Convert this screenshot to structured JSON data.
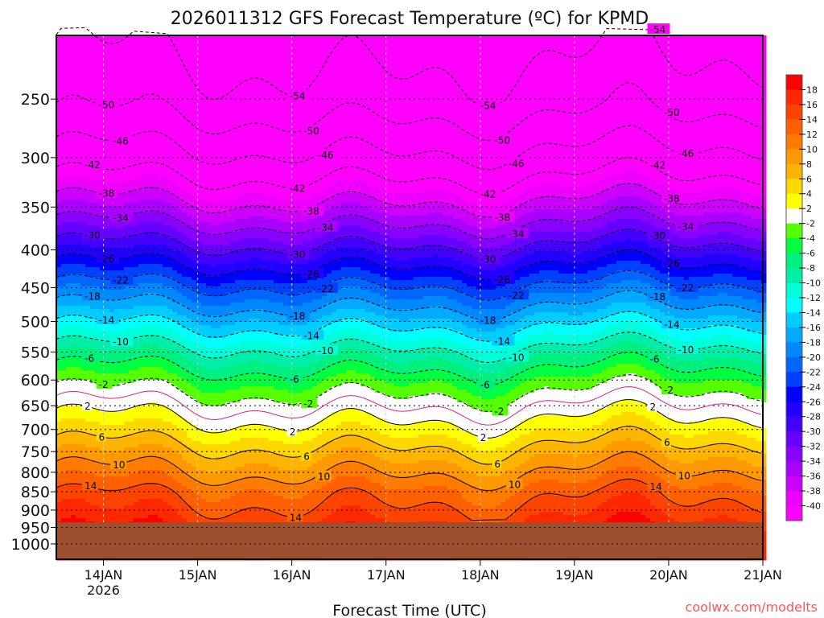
{
  "chart_data": {
    "type": "heatmap",
    "title": "2026011312 GFS Forecast Temperature (ºC) for KPMD",
    "xlabel": "Forecast Time (UTC)",
    "ylabel": "",
    "watermark": "coolwx.com/modelts",
    "x_ticks": [
      {
        "day": 14,
        "label": "14JAN",
        "sub": "2026"
      },
      {
        "day": 15,
        "label": "15JAN"
      },
      {
        "day": 16,
        "label": "16JAN"
      },
      {
        "day": 17,
        "label": "17JAN"
      },
      {
        "day": 18,
        "label": "18JAN"
      },
      {
        "day": 19,
        "label": "19JAN"
      },
      {
        "day": 20,
        "label": "20JAN"
      },
      {
        "day": 21,
        "label": "21JAN"
      }
    ],
    "xlim_days": [
      13.5,
      21
    ],
    "y_ticks": [
      250,
      300,
      350,
      400,
      450,
      500,
      550,
      600,
      650,
      700,
      750,
      800,
      850,
      900,
      950,
      1000
    ],
    "ylim_hpa": [
      205,
      1049
    ],
    "yscale": "log",
    "ground_hpa": 935,
    "ground_color": "#9c5030",
    "profile": {
      "pressure": [
        200,
        250,
        300,
        350,
        400,
        450,
        500,
        550,
        600,
        650,
        700,
        750,
        800,
        850,
        900,
        950,
        1050
      ],
      "temperature": [
        -56,
        -52,
        -45,
        -37,
        -29,
        -21.5,
        -15,
        -9,
        -4,
        0,
        3.5,
        7,
        10,
        13,
        15,
        17,
        19
      ]
    },
    "contour_levels": [
      -54,
      -50,
      -46,
      -42,
      -38,
      -34,
      -30,
      -26,
      -22,
      -18,
      -14,
      -10,
      -6,
      -2,
      0,
      2,
      6,
      10,
      14
    ],
    "colorbar": {
      "labels": [
        "18",
        "16",
        "14",
        "12",
        "10",
        "8",
        "6",
        "4",
        "2",
        "-2",
        "-4",
        "-6",
        "-8",
        "-10",
        "-12",
        "-14",
        "-16",
        "-18",
        "-20",
        "-22",
        "-24",
        "-26",
        "-28",
        "-30",
        "-32",
        "-34",
        "-36",
        "-38",
        "-40"
      ],
      "bins": [
        {
          "min": 18,
          "color": "#ff0000"
        },
        {
          "min": 16,
          "color": "#ff2800"
        },
        {
          "min": 14,
          "color": "#ff4400"
        },
        {
          "min": 12,
          "color": "#ff6000"
        },
        {
          "min": 10,
          "color": "#ff7c00"
        },
        {
          "min": 8,
          "color": "#ff9900"
        },
        {
          "min": 6,
          "color": "#ffb400"
        },
        {
          "min": 4,
          "color": "#ffd800"
        },
        {
          "min": 2,
          "color": "#ffff00"
        },
        {
          "min": -2,
          "color": "#ffffff"
        },
        {
          "min": -4,
          "color": "#55ff00"
        },
        {
          "min": -6,
          "color": "#00ff40"
        },
        {
          "min": -8,
          "color": "#00f080"
        },
        {
          "min": -10,
          "color": "#00eea8"
        },
        {
          "min": -12,
          "color": "#00ffd8"
        },
        {
          "min": -14,
          "color": "#00ffff"
        },
        {
          "min": -16,
          "color": "#00ccff"
        },
        {
          "min": -18,
          "color": "#00aaff"
        },
        {
          "min": -20,
          "color": "#0088ff"
        },
        {
          "min": -22,
          "color": "#0066ff"
        },
        {
          "min": -24,
          "color": "#0040ff"
        },
        {
          "min": -26,
          "color": "#0000ff"
        },
        {
          "min": -28,
          "color": "#2200ff"
        },
        {
          "min": -30,
          "color": "#4400ff"
        },
        {
          "min": -32,
          "color": "#6600ff"
        },
        {
          "min": -34,
          "color": "#8800ff"
        },
        {
          "min": -36,
          "color": "#aa00ff"
        },
        {
          "min": -38,
          "color": "#cc00ff"
        },
        {
          "min": -40,
          "color": "#ee00ff"
        },
        {
          "min": -999,
          "color": "#ff00ff"
        }
      ]
    }
  }
}
